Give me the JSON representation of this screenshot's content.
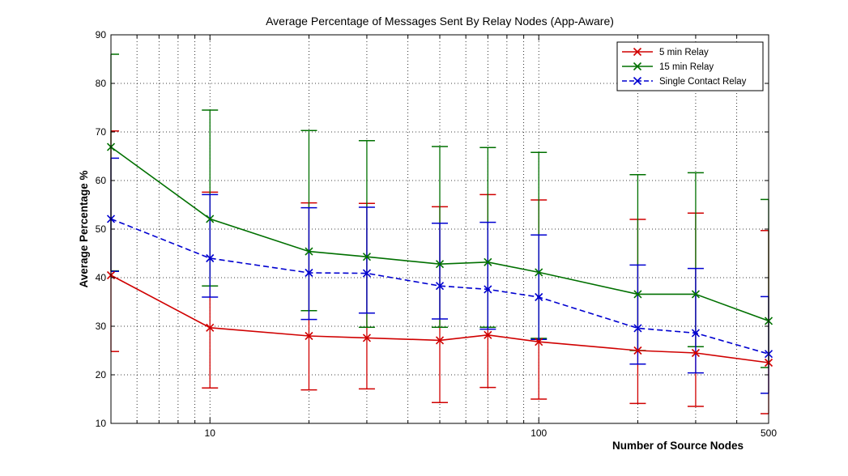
{
  "chart_data": {
    "type": "line",
    "title": "Average Percentage of Messages Sent By Relay Nodes (App-Aware)",
    "xlabel": "Number of Source Nodes",
    "ylabel": "Average Percentage %",
    "xscale": "log",
    "xlim": [
      5,
      500
    ],
    "ylim": [
      10,
      90
    ],
    "xticks": [
      10,
      100,
      500
    ],
    "xtick_labels": [
      "10",
      "100",
      "500"
    ],
    "yticks": [
      10,
      20,
      30,
      40,
      50,
      60,
      70,
      80,
      90
    ],
    "ytick_labels": [
      "10",
      "20",
      "30",
      "40",
      "50",
      "60",
      "70",
      "80",
      "90"
    ],
    "grid": true,
    "legend_position": "top-right",
    "x": [
      5,
      10,
      20,
      30,
      50,
      70,
      100,
      200,
      300,
      500
    ],
    "series": [
      {
        "name": "5 min Relay",
        "color": "#d00000",
        "line_style": "solid",
        "marker": "x",
        "values": [
          40.5,
          29.7,
          28.0,
          27.6,
          27.1,
          28.2,
          26.8,
          25.0,
          24.5,
          22.5
        ],
        "error_low": [
          24.8,
          17.3,
          16.9,
          17.1,
          14.3,
          17.4,
          15.0,
          14.1,
          13.5,
          12.0
        ],
        "error_high": [
          70.2,
          57.6,
          55.4,
          55.3,
          54.6,
          57.1,
          56.0,
          52.0,
          53.3,
          49.7
        ]
      },
      {
        "name": "15 min Relay",
        "color": "#007000",
        "line_style": "solid",
        "marker": "x",
        "values": [
          66.9,
          52.1,
          45.4,
          44.3,
          42.8,
          43.2,
          41.1,
          36.6,
          36.6,
          31.1
        ],
        "error_low": [
          41.4,
          38.3,
          33.2,
          29.8,
          29.8,
          29.8,
          27.5,
          25.0,
          25.8,
          21.5
        ],
        "error_high": [
          86.0,
          74.5,
          70.3,
          68.2,
          67.0,
          66.8,
          65.8,
          61.2,
          61.6,
          56.1
        ]
      },
      {
        "name": "Single Contact Relay",
        "color": "#0000d0",
        "line_style": "dashed",
        "marker": "x",
        "values": [
          52.1,
          44.0,
          41.0,
          40.9,
          38.3,
          37.6,
          36.0,
          29.6,
          28.6,
          24.3
        ],
        "error_low": [
          41.3,
          36.0,
          31.4,
          32.7,
          31.5,
          29.4,
          27.3,
          22.2,
          20.4,
          16.2
        ],
        "error_high": [
          64.6,
          57.1,
          54.4,
          54.5,
          51.2,
          51.4,
          48.8,
          42.6,
          41.9,
          36.1
        ]
      }
    ]
  }
}
